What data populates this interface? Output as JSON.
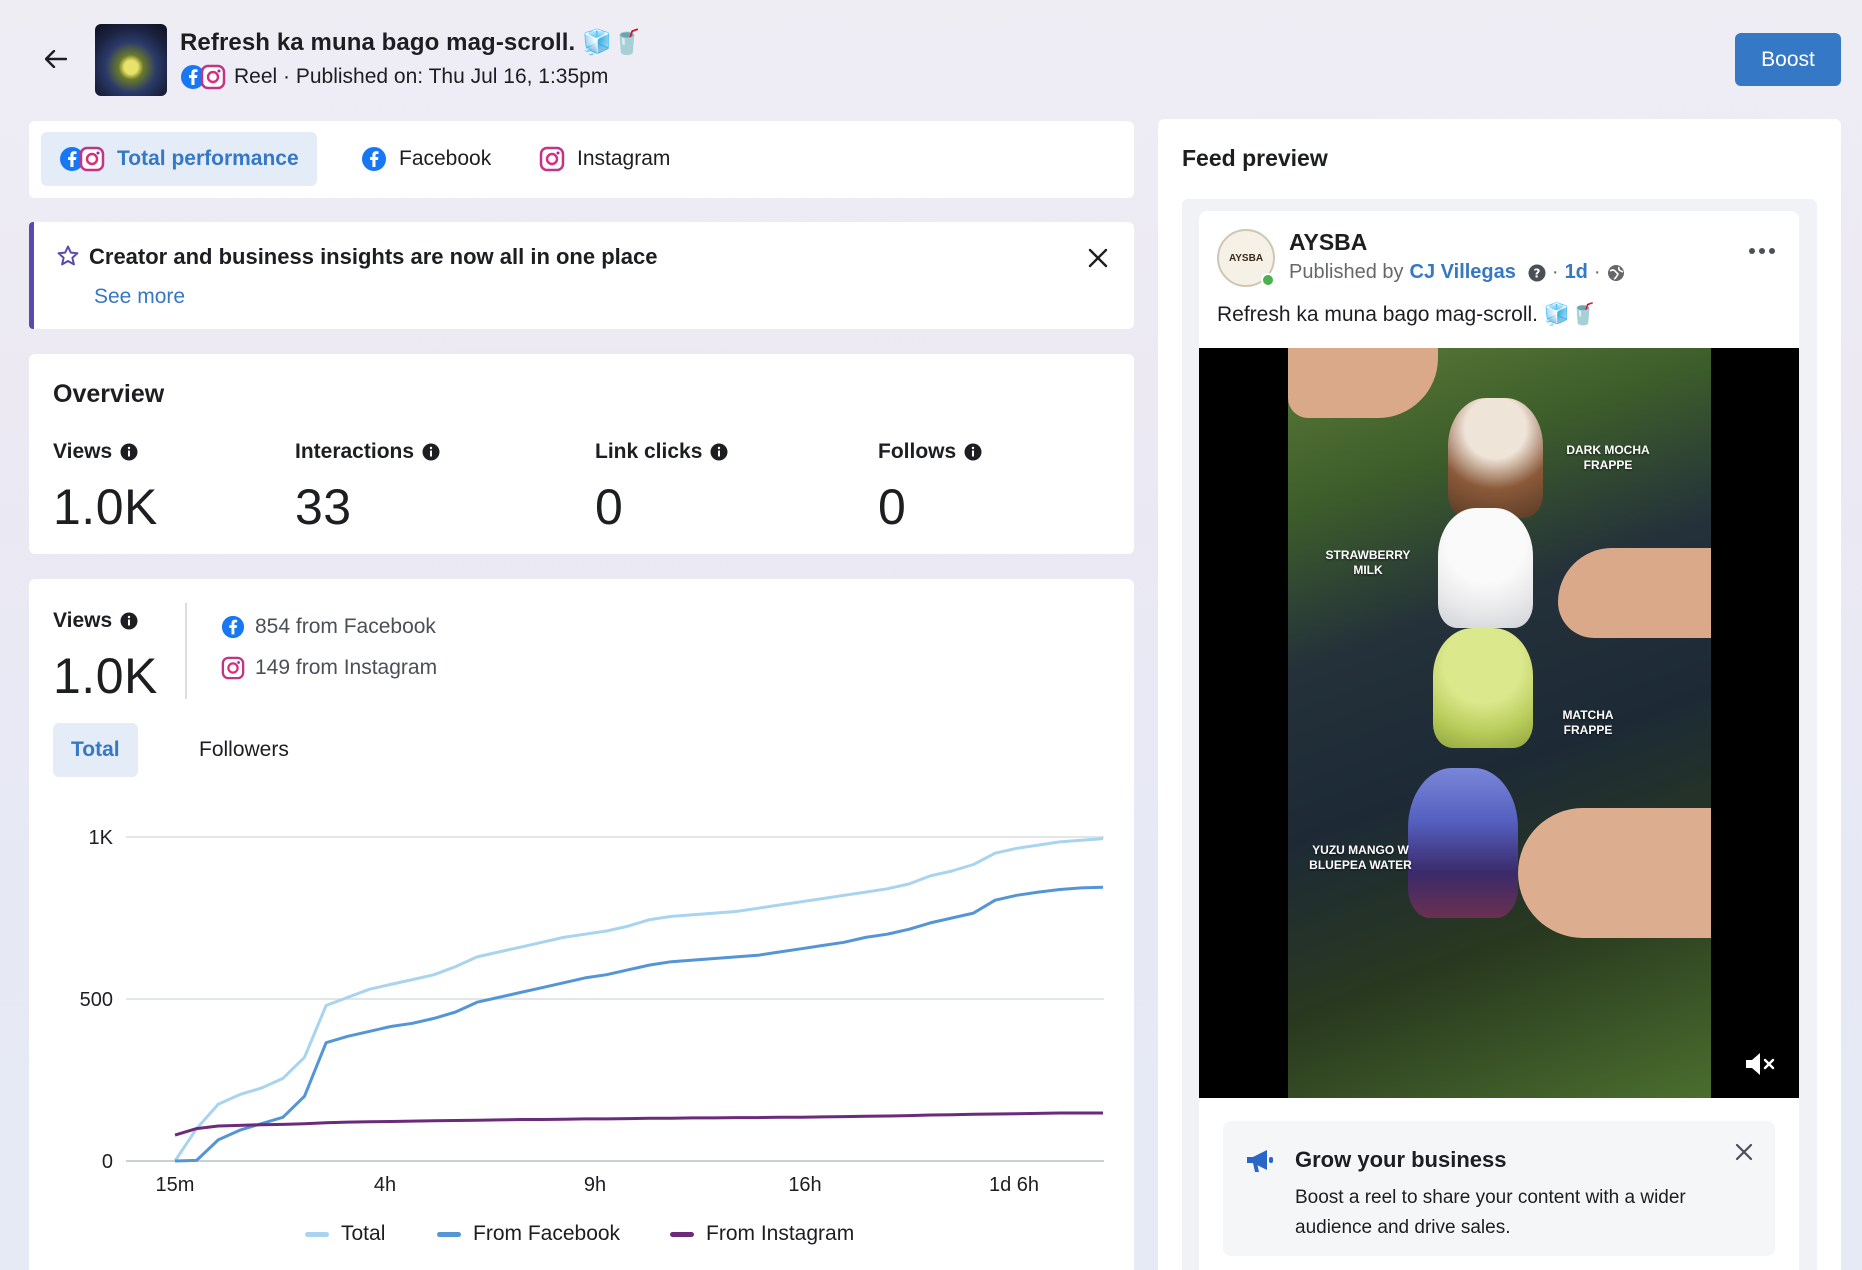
{
  "header": {
    "title": "Refresh ka muna bago mag-scroll. 🧊🥤",
    "subtitle": "Reel · Published on: Thu Jul 16, 1:35pm",
    "boost_label": "Boost"
  },
  "tabs": [
    {
      "label": "Total performance",
      "active": true
    },
    {
      "label": "Facebook",
      "active": false
    },
    {
      "label": "Instagram",
      "active": false
    }
  ],
  "notice": {
    "title": "Creator and business insights are now all in one place",
    "link": "See more"
  },
  "overview": {
    "heading": "Overview",
    "metrics": [
      {
        "label": "Views",
        "value": "1.0K"
      },
      {
        "label": "Interactions",
        "value": "33"
      },
      {
        "label": "Link clicks",
        "value": "0"
      },
      {
        "label": "Follows",
        "value": "0"
      }
    ]
  },
  "views": {
    "label": "Views",
    "value": "1.0K",
    "from_facebook": "854 from Facebook",
    "from_instagram": "149 from Instagram",
    "segments": [
      {
        "label": "Total",
        "active": true
      },
      {
        "label": "Followers",
        "active": false
      }
    ]
  },
  "chart_data": {
    "type": "line",
    "x_ticks": [
      "15m",
      "4h",
      "9h",
      "16h",
      "1d 6h"
    ],
    "y_ticks": [
      "0",
      "500",
      "1K"
    ],
    "ylim": [
      0,
      1000
    ],
    "legend_position": "bottom",
    "series": [
      {
        "name": "Total",
        "color": "#a8d4ef",
        "values": [
          0,
          100,
          175,
          205,
          225,
          255,
          320,
          480,
          505,
          530,
          545,
          560,
          575,
          600,
          630,
          645,
          660,
          675,
          690,
          700,
          710,
          725,
          745,
          755,
          760,
          765,
          770,
          780,
          790,
          800,
          810,
          820,
          830,
          840,
          855,
          880,
          895,
          915,
          950,
          965,
          975,
          985,
          990,
          995
        ]
      },
      {
        "name": "From Facebook",
        "color": "#5495d6",
        "values": [
          0,
          2,
          65,
          95,
          115,
          135,
          200,
          365,
          385,
          400,
          415,
          425,
          440,
          460,
          490,
          505,
          520,
          535,
          550,
          565,
          575,
          590,
          605,
          615,
          620,
          625,
          630,
          635,
          645,
          655,
          665,
          675,
          690,
          700,
          715,
          735,
          750,
          765,
          805,
          820,
          830,
          838,
          843,
          845
        ]
      },
      {
        "name": "From Instagram",
        "color": "#6b2a7a",
        "values": [
          80,
          100,
          108,
          110,
          112,
          113,
          115,
          118,
          120,
          121,
          122,
          123,
          124,
          125,
          126,
          127,
          128,
          128,
          129,
          130,
          130,
          131,
          132,
          132,
          133,
          133,
          134,
          134,
          135,
          135,
          136,
          137,
          138,
          139,
          140,
          142,
          143,
          144,
          145,
          146,
          147,
          148,
          148,
          148
        ]
      }
    ]
  },
  "preview": {
    "heading": "Feed preview",
    "page_name": "AYSBA",
    "avatar_text": "AYSBA",
    "published_by": "Published by",
    "author": "CJ Villegas",
    "age": "1d",
    "caption": "Refresh ka muna bago mag-scroll. 🧊🥤",
    "video_labels": {
      "dark_mocha": "DARK MOCHA FRAPPE",
      "strawberry": "STRAWBERRY MILK",
      "matcha": "MATCHA FRAPPE",
      "yuzu": "YUZU MANGO W BLUEPEA WATER"
    },
    "grow": {
      "title": "Grow your business",
      "text": "Boost a reel to share your content with a wider audience and drive sales."
    }
  }
}
